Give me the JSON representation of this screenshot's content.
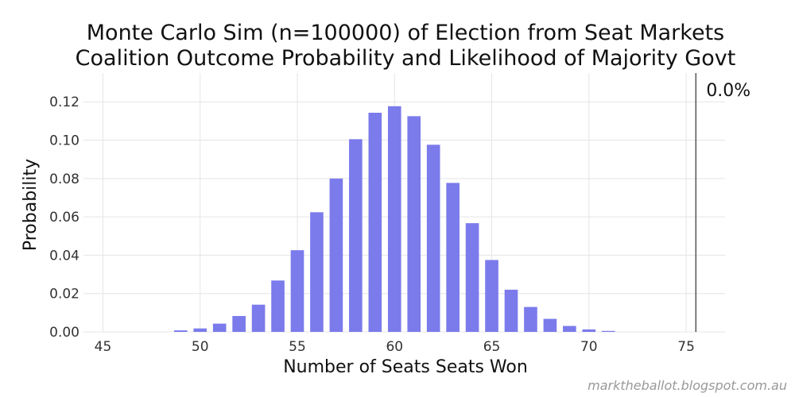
{
  "chart_data": {
    "type": "bar",
    "title": "Monte Carlo Sim (n=100000) of Election from Seat Markets",
    "subtitle": "Coalition Outcome Probability and Likelihood of Majority Govt",
    "xlabel": "Number of Seats Seats Won",
    "ylabel": "Probability",
    "xlim": [
      44,
      77
    ],
    "ylim": [
      0,
      0.135
    ],
    "xticks": [
      45,
      50,
      55,
      60,
      65,
      70,
      75
    ],
    "yticks": [
      "0.00",
      "0.02",
      "0.04",
      "0.06",
      "0.08",
      "0.10",
      "0.12"
    ],
    "grid": true,
    "bar_color": "#7b7bec",
    "x": [
      49,
      50,
      51,
      52,
      53,
      54,
      55,
      56,
      57,
      58,
      59,
      60,
      61,
      62,
      63,
      64,
      65,
      66,
      67,
      68,
      69,
      70,
      71
    ],
    "values": [
      0.0008,
      0.0018,
      0.0043,
      0.0083,
      0.0142,
      0.0268,
      0.0426,
      0.0624,
      0.08,
      0.1005,
      0.1143,
      0.1177,
      0.1125,
      0.0976,
      0.0777,
      0.0567,
      0.0375,
      0.022,
      0.013,
      0.0068,
      0.0031,
      0.0013,
      0.0005
    ],
    "threshold": {
      "x": 75.5,
      "label": "0.0%"
    }
  },
  "watermark": "marktheballot.blogspot.com.au"
}
